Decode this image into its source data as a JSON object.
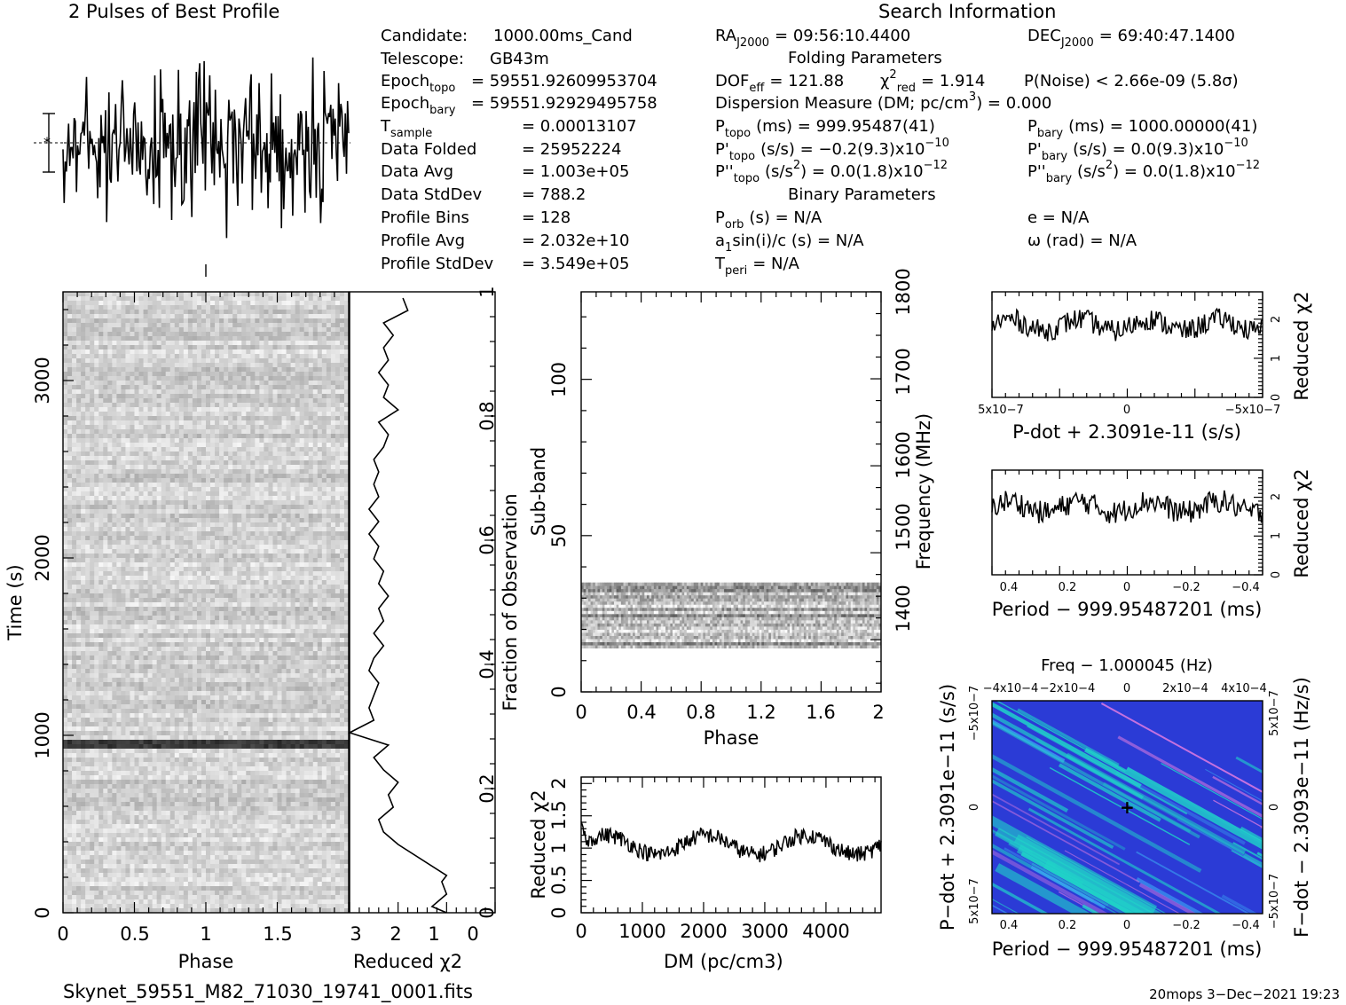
{
  "header": {
    "profile_title": "2 Pulses of Best Profile",
    "search_title": "Search Information",
    "folding_title": "Folding Parameters",
    "binary_title": "Binary Parameters"
  },
  "info_lines": [
    {
      "label": "Candidate:",
      "value": "1000.00ms_Cand"
    },
    {
      "label": "Telescope:",
      "value": "GB43m"
    },
    {
      "label": "Epoch",
      "sub": "topo",
      "value": "= 59551.92609953704"
    },
    {
      "label": "Epoch",
      "sub": "bary",
      "value": "= 59551.92929495758"
    },
    {
      "label": "T",
      "sub": "sample",
      "value": "=   0.00013107"
    },
    {
      "label": "Data Folded",
      "value": "=   25952224"
    },
    {
      "label": "Data Avg",
      "value": "=   1.003e+05"
    },
    {
      "label": "Data StdDev",
      "value": "=   788.2"
    },
    {
      "label": "Profile Bins",
      "value": "=   128"
    },
    {
      "label": "Profile Avg",
      "value": "=   2.032e+10"
    },
    {
      "label": "Profile StdDev",
      "value": "=   3.549e+05"
    }
  ],
  "search_info": {
    "ra": {
      "label": "RA",
      "sub": "J2000",
      "value": "= 09:56:10.4400"
    },
    "dec": {
      "label": "DEC",
      "sub": "J2000",
      "value": "= 69:40:47.1400"
    },
    "dof": {
      "label": "DOF",
      "sub": "eff",
      "value": "= 121.88"
    },
    "chi2": {
      "label": "χ",
      "sup": "2",
      "sub": "red",
      "value": "= 1.914"
    },
    "pnoise": "P(Noise) < 2.66e-09   (5.8σ)",
    "dm": "Dispersion Measure (DM; pc/cm",
    "dm_sup": "3",
    "dm_value": ") = 0.000",
    "ptopo": {
      "label": "P",
      "sub": "topo",
      "value": "(ms) =  999.95487(41)"
    },
    "pbary": {
      "label": "P",
      "sub": "bary",
      "value": "(ms) =  1000.00000(41)"
    },
    "pdtopo": {
      "label": "P'",
      "sub": "topo",
      "value": "(s/s) = −0.2(9.3)x10",
      "exp": "−10"
    },
    "pdbary": {
      "label": "P'",
      "sub": "bary",
      "value": "(s/s) = 0.0(9.3)x10",
      "exp": "−10"
    },
    "pddtopo": {
      "label": "P''",
      "sub": "topo",
      "value": "(s/s",
      "sup": "2",
      "value2": ") = 0.0(1.8)x10",
      "exp": "−12"
    },
    "pddbary": {
      "label": "P''",
      "sub": "bary",
      "value": "(s/s",
      "sup": "2",
      "value2": ") = 0.0(1.8)x10",
      "exp": "−12"
    },
    "porb": {
      "label": "P",
      "sub": "orb",
      "value": "(s) = N/A"
    },
    "ecc": "e = N/A",
    "a1": {
      "label": "a",
      "sub": "1",
      "value": "sin(i)/c (s) = N/A"
    },
    "omega": "ω (rad) = N/A",
    "tperi": {
      "label": "T",
      "sub": "peri",
      "value": "= N/A"
    }
  },
  "footer": {
    "filename": "Skynet_59551_M82_71030_19741_0001.fits",
    "stamp": "20mops   3−Dec−2021 19:23"
  },
  "chart_data": [
    {
      "type": "line",
      "name": "profile",
      "title": "2 Pulses of Best Profile",
      "x_range": [
        0,
        2
      ],
      "bins": 256,
      "note_error_bar": true
    },
    {
      "type": "heatmap",
      "name": "time-phase",
      "xlabel": "Phase",
      "ylabel": "Time (s)",
      "xlim": [
        0,
        2
      ],
      "ylim": [
        0,
        3500
      ],
      "xticks": [
        "0",
        "0.5",
        "1",
        "1.5"
      ],
      "yticks": [
        "0",
        "1000",
        "2000",
        "3000"
      ],
      "dark_band_time": 950
    },
    {
      "type": "line",
      "name": "reduced-chi2-vs-time",
      "xlabel": "Reduced χ2",
      "ylabel": "Fraction of Observation",
      "xlim": [
        3,
        0
      ],
      "ylim": [
        0,
        1
      ],
      "xticks": [
        "3",
        "2",
        "1",
        "0"
      ],
      "yticks": [
        "0",
        "0.2",
        "0.4",
        "0.6",
        "0.8",
        "1"
      ],
      "points": [
        [
          1.0,
          0.0
        ],
        [
          1.3,
          0.01
        ],
        [
          1.0,
          0.03
        ],
        [
          1.1,
          0.05
        ],
        [
          1.0,
          0.06
        ],
        [
          2.0,
          0.11
        ],
        [
          2.3,
          0.13
        ],
        [
          2.4,
          0.15
        ],
        [
          2.1,
          0.17
        ],
        [
          2.2,
          0.19
        ],
        [
          2.0,
          0.21
        ],
        [
          2.3,
          0.23
        ],
        [
          2.5,
          0.25
        ],
        [
          2.2,
          0.27
        ],
        [
          2.6,
          0.28
        ],
        [
          3.0,
          0.29
        ],
        [
          2.5,
          0.31
        ],
        [
          2.6,
          0.33
        ],
        [
          2.5,
          0.35
        ],
        [
          2.4,
          0.37
        ],
        [
          2.6,
          0.39
        ],
        [
          2.5,
          0.41
        ],
        [
          2.3,
          0.43
        ],
        [
          2.5,
          0.45
        ],
        [
          2.3,
          0.47
        ],
        [
          2.4,
          0.49
        ],
        [
          2.2,
          0.51
        ],
        [
          2.4,
          0.53
        ],
        [
          2.3,
          0.55
        ],
        [
          2.5,
          0.57
        ],
        [
          2.4,
          0.59
        ],
        [
          2.6,
          0.61
        ],
        [
          2.4,
          0.63
        ],
        [
          2.6,
          0.65
        ],
        [
          2.4,
          0.67
        ],
        [
          2.5,
          0.69
        ],
        [
          2.4,
          0.71
        ],
        [
          2.5,
          0.73
        ],
        [
          2.3,
          0.75
        ],
        [
          2.2,
          0.77
        ],
        [
          2.4,
          0.79
        ],
        [
          2.0,
          0.81
        ],
        [
          2.3,
          0.83
        ],
        [
          2.2,
          0.85
        ],
        [
          2.4,
          0.87
        ],
        [
          2.2,
          0.89
        ],
        [
          2.3,
          0.91
        ],
        [
          2.1,
          0.93
        ],
        [
          2.3,
          0.95
        ],
        [
          1.8,
          0.97
        ],
        [
          1.9,
          0.99
        ]
      ]
    },
    {
      "type": "heatmap",
      "name": "subband-phase",
      "xlabel": "Phase",
      "ylabel": "Sub-band",
      "y2label": "Frequency (MHz)",
      "xlim": [
        0,
        2
      ],
      "ylim": [
        0,
        128
      ],
      "y2lim": [
        1340,
        1800
      ],
      "xticks": [
        "0",
        "0.4",
        "0.8",
        "1.2",
        "1.6",
        "2"
      ],
      "yticks": [
        "0",
        "50",
        "100"
      ],
      "y2ticks": [
        "1400",
        "1500",
        "1600",
        "1700",
        "1800"
      ],
      "band_range": [
        14,
        35
      ]
    },
    {
      "type": "line",
      "name": "dm-chi2",
      "xlabel": "DM (pc/cm3)",
      "ylabel": "Reduced χ2",
      "xlim": [
        0,
        4900
      ],
      "ylim": [
        0,
        2.1
      ],
      "xticks": [
        "0",
        "1000",
        "2000",
        "3000",
        "4000"
      ],
      "yticks": [
        "0",
        "0.5",
        "1",
        "1.5",
        "2"
      ]
    },
    {
      "type": "line",
      "name": "pdot-chi2",
      "xlabel": "P-dot + 2.3091e-11 (s/s)",
      "ylabel": "Reduced χ2",
      "xlim": [
        5e-07,
        -5e-07
      ],
      "ylim": [
        0,
        2.7
      ],
      "xticks": [
        "5x10−7",
        "0",
        "−5x10−7"
      ],
      "yticks": [
        "0",
        "1",
        "2"
      ]
    },
    {
      "type": "line",
      "name": "period-chi2",
      "xlabel": "Period − 999.95487201 (ms)",
      "ylabel": "Reduced χ2",
      "xlim": [
        0.45,
        -0.45
      ],
      "ylim": [
        0,
        2.7
      ],
      "xticks": [
        "0.4",
        "0.2",
        "0",
        "−0.2",
        "−0.4"
      ],
      "yticks": [
        "0",
        "1",
        "2"
      ]
    },
    {
      "type": "heatmap",
      "name": "p-pdot",
      "title": "Freq − 1.000045 (Hz)",
      "xlabel": "Period − 999.95487201 (ms)",
      "ylabel": "P−dot + 2.3091e−11 (s/s)",
      "y2label": "F−dot − 2.3093e−11 (Hz/s)",
      "xticks": [
        "0.4",
        "0.2",
        "0",
        "−0.2",
        "−0.4"
      ],
      "top_ticks": [
        "−4x10−4",
        "−2x10−4",
        "0",
        "2x10−4",
        "4x10−4"
      ],
      "yticks": [
        "5x10−7",
        "0",
        "−5x10−7"
      ],
      "y2ticks": [
        "−5x10−7",
        "0",
        "5x10−7"
      ]
    }
  ],
  "colors": {
    "heat_low": "#2b3bd6",
    "heat_mid": "#1fd6c8",
    "heat_high": "#e07be0",
    "ink": "#000000"
  }
}
